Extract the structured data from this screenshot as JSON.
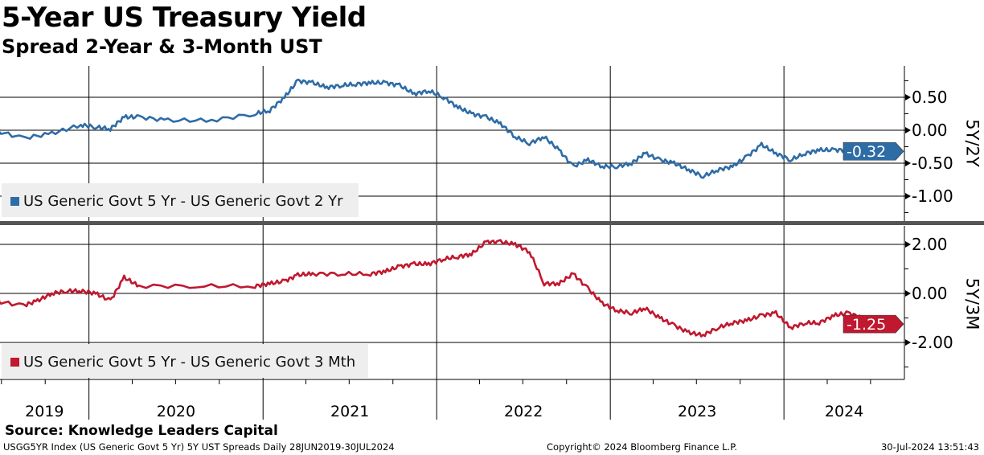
{
  "title": "5-Year US Treasury Yield",
  "subtitle": "Spread 2-Year & 3-Month UST",
  "source": "Source: Knowledge Leaders Capital",
  "footer": {
    "left": "USGG5YR Index (US Generic Govt 5 Yr) 5Y UST Spreads  Daily 28JUN2019-30JUL2024",
    "center": "Copyright© 2024 Bloomberg Finance L.P.",
    "right": "30-Jul-2024 13:51:43"
  },
  "chart_data": [
    {
      "type": "line",
      "axis_label": "5Y/2Y",
      "legend": "US Generic Govt 5 Yr - US Generic Govt 2 Yr",
      "color": "#2e6ca6",
      "last_value_label": "-0.32",
      "yticks": [
        "0.50",
        "0.00",
        "-0.50",
        "-1.00"
      ],
      "ytick_values": [
        0.5,
        0,
        -0.5,
        -1
      ],
      "ylim": [
        -1.4,
        0.95
      ],
      "x": [
        "2019-06",
        "2019-08",
        "2019-10",
        "2019-12",
        "2020-01",
        "2020-02",
        "2020-03",
        "2020-04",
        "2020-06",
        "2020-09",
        "2020-12",
        "2021-01",
        "2021-02",
        "2021-03",
        "2021-04",
        "2021-05",
        "2021-06",
        "2021-07",
        "2021-08",
        "2021-09",
        "2021-10",
        "2021-11",
        "2021-12",
        "2022-01",
        "2022-02",
        "2022-03",
        "2022-04",
        "2022-05",
        "2022-06",
        "2022-07",
        "2022-08",
        "2022-09",
        "2022-10",
        "2022-11",
        "2022-12",
        "2023-01",
        "2023-02",
        "2023-03",
        "2023-04",
        "2023-05",
        "2023-06",
        "2023-07",
        "2023-08",
        "2023-09",
        "2023-10",
        "2023-11",
        "2023-12",
        "2024-01",
        "2024-02",
        "2024-03",
        "2024-04",
        "2024-05",
        "2024-06",
        "2024-07"
      ],
      "values": [
        0.0,
        -0.12,
        -0.05,
        0.08,
        0.05,
        0.02,
        0.2,
        0.2,
        0.15,
        0.15,
        0.25,
        0.3,
        0.5,
        0.75,
        0.72,
        0.65,
        0.68,
        0.7,
        0.72,
        0.72,
        0.68,
        0.55,
        0.6,
        0.5,
        0.35,
        0.25,
        0.2,
        0.1,
        -0.1,
        -0.2,
        -0.1,
        -0.3,
        -0.55,
        -0.45,
        -0.55,
        -0.55,
        -0.5,
        -0.35,
        -0.45,
        -0.5,
        -0.6,
        -0.7,
        -0.6,
        -0.55,
        -0.4,
        -0.22,
        -0.35,
        -0.45,
        -0.35,
        -0.3,
        -0.3,
        -0.3,
        -0.4,
        -0.32
      ]
    },
    {
      "type": "line",
      "axis_label": "5Y/3M",
      "legend": "US Generic Govt 5 Yr - US Generic Govt 3 Mth",
      "color": "#c0182f",
      "last_value_label": "-1.25",
      "yticks": [
        "2.00",
        "0.00",
        "-2.00"
      ],
      "ytick_values": [
        2,
        0,
        -2
      ],
      "ylim": [
        -3.5,
        2.8
      ],
      "x": [
        "2019-06",
        "2019-08",
        "2019-09",
        "2019-10",
        "2019-11",
        "2019-12",
        "2020-01",
        "2020-02",
        "2020-03",
        "2020-04",
        "2020-08",
        "2020-12",
        "2021-01",
        "2021-02",
        "2021-03",
        "2021-04",
        "2021-06",
        "2021-08",
        "2021-09",
        "2021-10",
        "2021-11",
        "2021-12",
        "2022-01",
        "2022-02",
        "2022-03",
        "2022-04",
        "2022-05",
        "2022-06",
        "2022-07",
        "2022-08",
        "2022-09",
        "2022-10",
        "2022-11",
        "2022-12",
        "2023-01",
        "2023-02",
        "2023-03",
        "2023-04",
        "2023-05",
        "2023-06",
        "2023-07",
        "2023-08",
        "2023-09",
        "2023-10",
        "2023-11",
        "2023-12",
        "2024-01",
        "2024-02",
        "2024-03",
        "2024-04",
        "2024-05",
        "2024-06",
        "2024-07"
      ],
      "values": [
        -0.3,
        -0.5,
        -0.3,
        0.0,
        0.1,
        0.1,
        0.0,
        -0.3,
        0.65,
        0.3,
        0.3,
        0.3,
        0.4,
        0.5,
        0.75,
        0.8,
        0.8,
        0.8,
        0.9,
        1.1,
        1.2,
        1.2,
        1.4,
        1.5,
        1.6,
        2.1,
        2.1,
        2.0,
        1.7,
        0.4,
        0.4,
        0.8,
        0.2,
        -0.4,
        -0.7,
        -0.8,
        -0.6,
        -1.0,
        -1.3,
        -1.6,
        -1.7,
        -1.4,
        -1.2,
        -1.1,
        -0.9,
        -0.8,
        -1.4,
        -1.2,
        -1.2,
        -0.9,
        -0.8,
        -1.0,
        -1.25
      ]
    }
  ],
  "x_axis": {
    "start": "2019-06-28",
    "end": "2024-07-30",
    "year_labels": [
      "2019",
      "2020",
      "2021",
      "2022",
      "2023",
      "2024"
    ]
  }
}
